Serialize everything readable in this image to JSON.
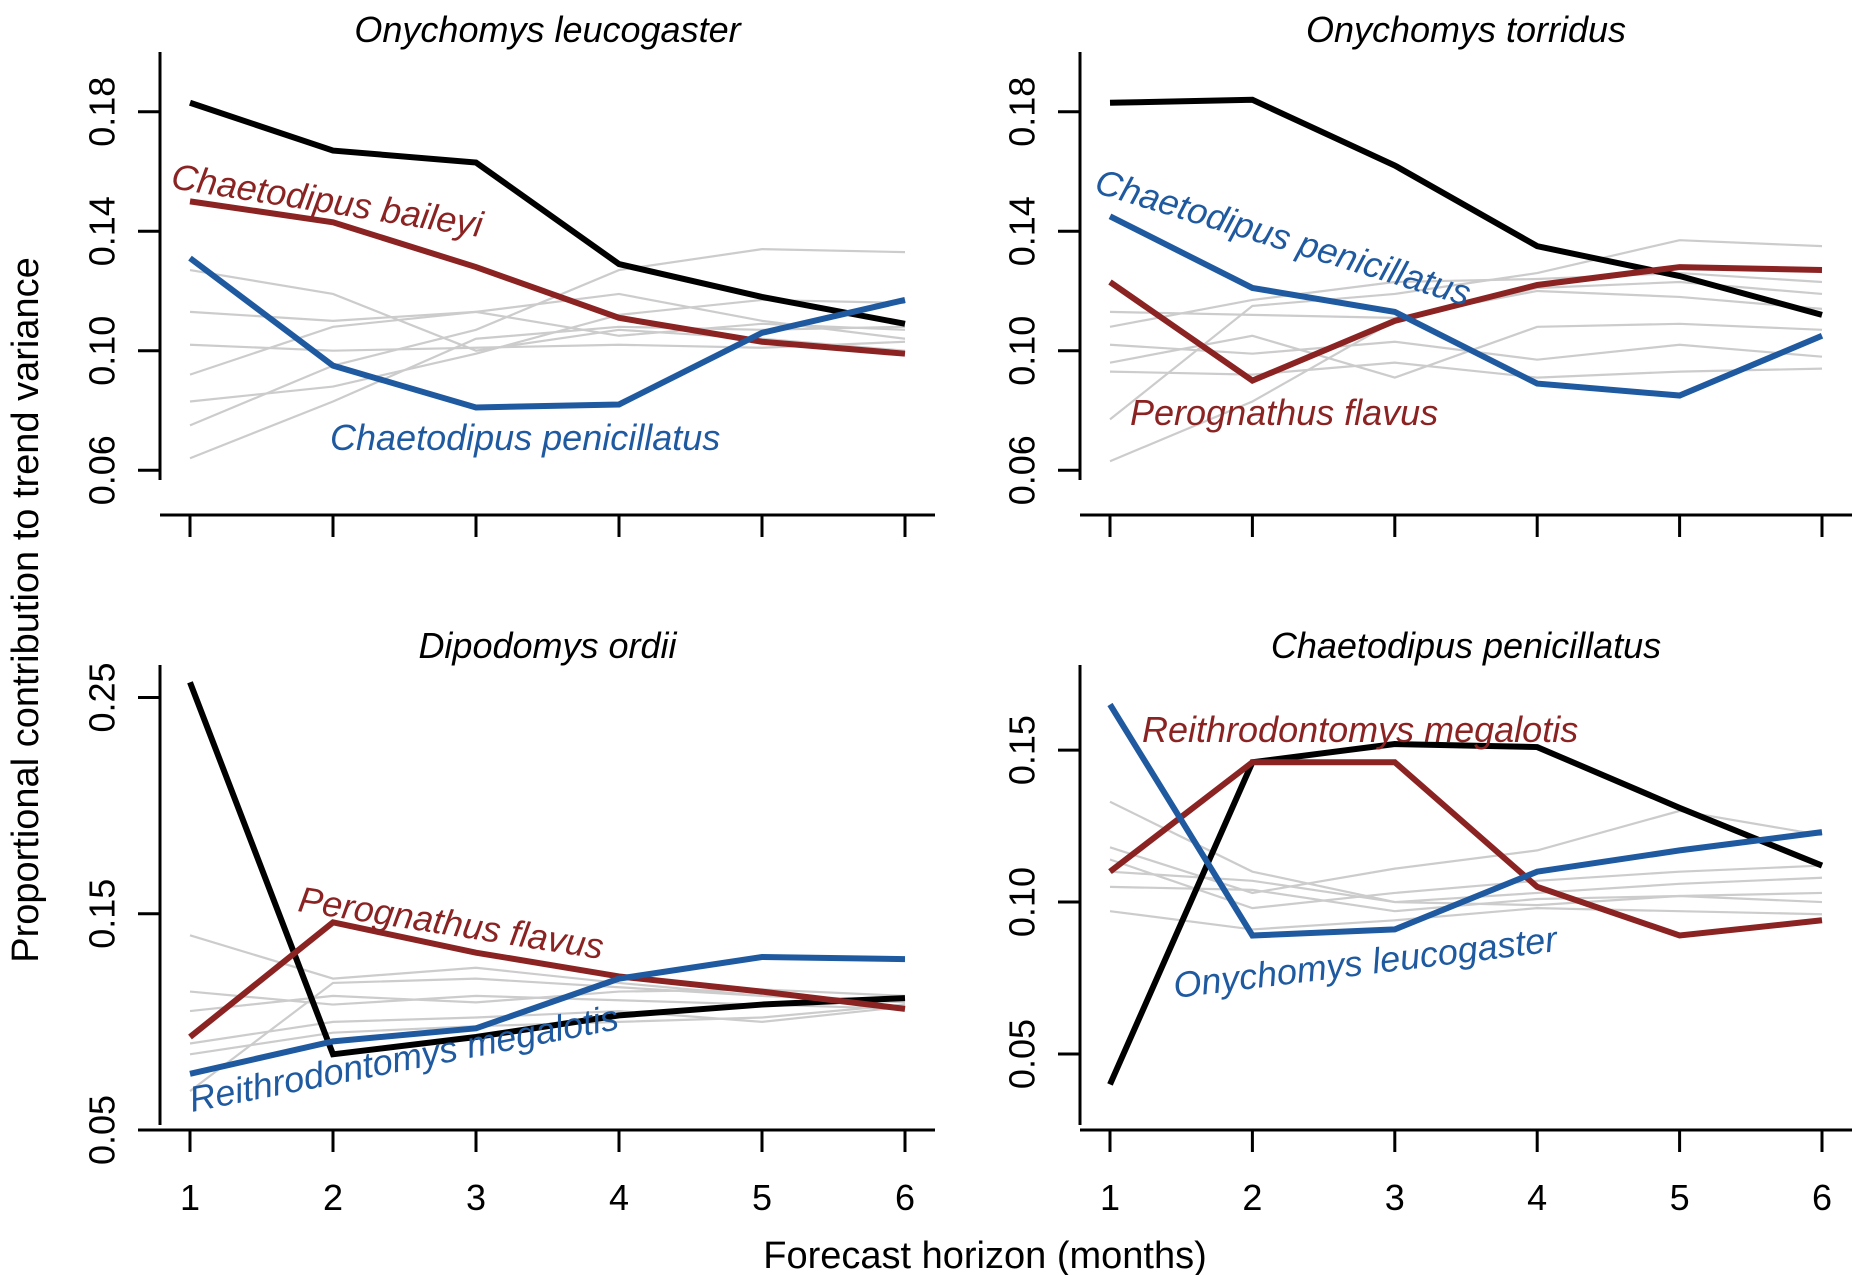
{
  "figure": {
    "ylabel": "Proportional contribution to trend variance",
    "xlabel": "Forecast horizon (months)"
  },
  "colors": {
    "black": "#000000",
    "red": "#8b2323",
    "blue": "#1f5aa0",
    "grey": "#cccccc"
  },
  "chart_data": [
    {
      "type": "line",
      "title": "Onychomys leucogaster",
      "x": [
        1,
        2,
        3,
        4,
        5,
        6
      ],
      "xticks": [
        1,
        2,
        3,
        4,
        5,
        6
      ],
      "yticks": [
        "0.06",
        "0.10",
        "0.14",
        "0.18"
      ],
      "yrange": [
        0.045,
        0.2
      ],
      "series": [
        {
          "color": "grey",
          "values": [
            0.083,
            0.088,
            0.099,
            0.112,
            0.117,
            0.116
          ]
        },
        {
          "color": "grey",
          "values": [
            0.102,
            0.1,
            0.101,
            0.102,
            0.101,
            0.103
          ]
        },
        {
          "color": "grey",
          "values": [
            0.127,
            0.119,
            0.1,
            0.107,
            0.104,
            0.1
          ]
        },
        {
          "color": "grey",
          "values": [
            0.075,
            0.095,
            0.107,
            0.127,
            0.134,
            0.133
          ]
        },
        {
          "color": "grey",
          "values": [
            0.064,
            0.083,
            0.104,
            0.108,
            0.107,
            0.108
          ]
        },
        {
          "color": "grey",
          "values": [
            0.113,
            0.11,
            0.113,
            0.119,
            0.11,
            0.104
          ]
        },
        {
          "color": "grey",
          "values": [
            0.092,
            0.108,
            0.113,
            0.105,
            0.109,
            0.107
          ]
        },
        {
          "color": "black",
          "values": [
            0.183,
            0.167,
            0.163,
            0.129,
            0.118,
            0.109
          ]
        },
        {
          "color": "red",
          "name": "Chaetodipus baileyi",
          "values": [
            0.15,
            0.143,
            0.128,
            0.111,
            0.103,
            0.099
          ]
        },
        {
          "color": "blue",
          "name": "Chaetodipus penicillatus",
          "values": [
            0.131,
            0.095,
            0.081,
            0.082,
            0.106,
            0.117
          ]
        }
      ]
    },
    {
      "type": "line",
      "title": "Onychomys torridus",
      "x": [
        1,
        2,
        3,
        4,
        5,
        6
      ],
      "xticks": [
        1,
        2,
        3,
        4,
        5,
        6
      ],
      "yticks": [
        "0.06",
        "0.10",
        "0.14",
        "0.18"
      ],
      "yrange": [
        0.045,
        0.2
      ],
      "series": [
        {
          "color": "grey",
          "values": [
            0.063,
            0.083,
            0.11,
            0.121,
            0.123,
            0.119
          ]
        },
        {
          "color": "grey",
          "values": [
            0.096,
            0.105,
            0.091,
            0.108,
            0.109,
            0.107
          ]
        },
        {
          "color": "grey",
          "values": [
            0.077,
            0.115,
            0.119,
            0.126,
            0.137,
            0.135
          ]
        },
        {
          "color": "grey",
          "values": [
            0.102,
            0.099,
            0.103,
            0.097,
            0.102,
            0.098
          ]
        },
        {
          "color": "grey",
          "values": [
            0.113,
            0.112,
            0.111,
            0.12,
            0.118,
            0.114
          ]
        },
        {
          "color": "grey",
          "values": [
            0.108,
            0.117,
            0.123,
            0.124,
            0.126,
            0.123
          ]
        },
        {
          "color": "grey",
          "values": [
            0.093,
            0.092,
            0.096,
            0.091,
            0.093,
            0.094
          ]
        },
        {
          "color": "black",
          "values": [
            0.183,
            0.184,
            0.162,
            0.135,
            0.125,
            0.112
          ]
        },
        {
          "color": "red",
          "name": "Perognathus flavus",
          "values": [
            0.123,
            0.09,
            0.11,
            0.122,
            0.128,
            0.127
          ]
        },
        {
          "color": "blue",
          "name": "Chaetodipus penicillatus",
          "values": [
            0.145,
            0.121,
            0.113,
            0.089,
            0.085,
            0.105
          ]
        }
      ]
    },
    {
      "type": "line",
      "title": "Dipodomys ordii",
      "x": [
        1,
        2,
        3,
        4,
        5,
        6
      ],
      "xticks": [
        1,
        2,
        3,
        4,
        5,
        6
      ],
      "yticks": [
        "0.05",
        "0.15",
        "0.25"
      ],
      "yrange": [
        0.05,
        0.265
      ],
      "series": [
        {
          "color": "grey",
          "values": [
            0.14,
            0.12,
            0.125,
            0.118,
            0.112,
            0.109
          ]
        },
        {
          "color": "grey",
          "values": [
            0.114,
            0.108,
            0.112,
            0.11,
            0.108,
            0.106
          ]
        },
        {
          "color": "grey",
          "values": [
            0.068,
            0.118,
            0.12,
            0.116,
            0.112,
            0.11
          ]
        },
        {
          "color": "grey",
          "values": [
            0.09,
            0.1,
            0.102,
            0.105,
            0.1,
            0.107
          ]
        },
        {
          "color": "grey",
          "values": [
            0.105,
            0.112,
            0.109,
            0.114,
            0.115,
            0.112
          ]
        },
        {
          "color": "grey",
          "values": [
            0.085,
            0.095,
            0.098,
            0.1,
            0.102,
            0.108
          ]
        },
        {
          "color": "black",
          "values": [
            0.257,
            0.085,
            0.093,
            0.103,
            0.108,
            0.111
          ]
        },
        {
          "color": "red",
          "name": "Perognathus flavus",
          "values": [
            0.093,
            0.146,
            0.132,
            0.121,
            0.114,
            0.106
          ]
        },
        {
          "color": "blue",
          "name": "Reithrodontomys megalotis",
          "values": [
            0.076,
            0.091,
            0.097,
            0.12,
            0.13,
            0.129
          ]
        }
      ]
    },
    {
      "type": "line",
      "title": "Chaetodipus penicillatus",
      "x": [
        1,
        2,
        3,
        4,
        5,
        6
      ],
      "xticks": [
        1,
        2,
        3,
        4,
        5,
        6
      ],
      "yticks": [
        "0.05",
        "0.10",
        "0.15"
      ],
      "yrange": [
        0.025,
        0.178
      ],
      "series": [
        {
          "color": "grey",
          "values": [
            0.133,
            0.11,
            0.1,
            0.103,
            0.106,
            0.108
          ]
        },
        {
          "color": "grey",
          "values": [
            0.118,
            0.103,
            0.111,
            0.117,
            0.13,
            0.122
          ]
        },
        {
          "color": "grey",
          "values": [
            0.11,
            0.107,
            0.1,
            0.099,
            0.102,
            0.1
          ]
        },
        {
          "color": "grey",
          "values": [
            0.097,
            0.091,
            0.094,
            0.098,
            0.097,
            0.096
          ]
        },
        {
          "color": "grey",
          "values": [
            0.114,
            0.098,
            0.103,
            0.107,
            0.11,
            0.112
          ]
        },
        {
          "color": "grey",
          "values": [
            0.105,
            0.104,
            0.097,
            0.101,
            0.102,
            0.103
          ]
        },
        {
          "color": "black",
          "values": [
            0.04,
            0.146,
            0.152,
            0.151,
            0.131,
            0.112
          ]
        },
        {
          "color": "red",
          "name": "Reithrodontomys megalotis",
          "values": [
            0.11,
            0.146,
            0.146,
            0.105,
            0.089,
            0.094
          ]
        },
        {
          "color": "blue",
          "name": "Onychomys leucogaster",
          "values": [
            0.165,
            0.089,
            0.091,
            0.11,
            0.117,
            0.123
          ]
        }
      ]
    }
  ]
}
